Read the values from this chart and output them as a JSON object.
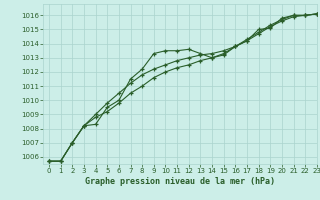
{
  "xlabel": "Graphe pression niveau de la mer (hPa)",
  "bg_color": "#cceee8",
  "grid_color": "#aad4ce",
  "line_color": "#2a5e2a",
  "xlim": [
    -0.5,
    23
  ],
  "ylim": [
    1005.5,
    1016.8
  ],
  "yticks": [
    1006,
    1007,
    1008,
    1009,
    1010,
    1011,
    1012,
    1013,
    1014,
    1015,
    1016
  ],
  "xticks": [
    0,
    1,
    2,
    3,
    4,
    5,
    6,
    7,
    8,
    9,
    10,
    11,
    12,
    13,
    14,
    15,
    16,
    17,
    18,
    19,
    20,
    21,
    22,
    23
  ],
  "series1": [
    1005.7,
    1005.7,
    1007.0,
    1008.2,
    1008.3,
    1009.5,
    1010.0,
    1011.5,
    1012.2,
    1013.3,
    1013.5,
    1013.5,
    1013.6,
    1013.3,
    1013.0,
    1013.2,
    1013.8,
    1014.2,
    1015.0,
    1015.1,
    1015.8,
    1016.0,
    1016.0,
    1016.1
  ],
  "series2": [
    1005.7,
    1005.7,
    1007.0,
    1008.2,
    1009.0,
    1009.8,
    1010.5,
    1011.2,
    1011.8,
    1012.2,
    1012.5,
    1012.8,
    1013.0,
    1013.2,
    1013.3,
    1013.5,
    1013.8,
    1014.2,
    1014.7,
    1015.2,
    1015.6,
    1015.9,
    1016.0,
    1016.1
  ],
  "series3": [
    1005.7,
    1005.7,
    1007.0,
    1008.2,
    1008.8,
    1009.2,
    1009.8,
    1010.5,
    1011.0,
    1011.6,
    1012.0,
    1012.3,
    1012.5,
    1012.8,
    1013.0,
    1013.3,
    1013.8,
    1014.3,
    1014.8,
    1015.3,
    1015.7,
    1016.0,
    1016.0,
    1016.1
  ],
  "tick_fontsize": 5.0,
  "xlabel_fontsize": 6.0,
  "marker_size": 3.0,
  "line_width": 0.8
}
